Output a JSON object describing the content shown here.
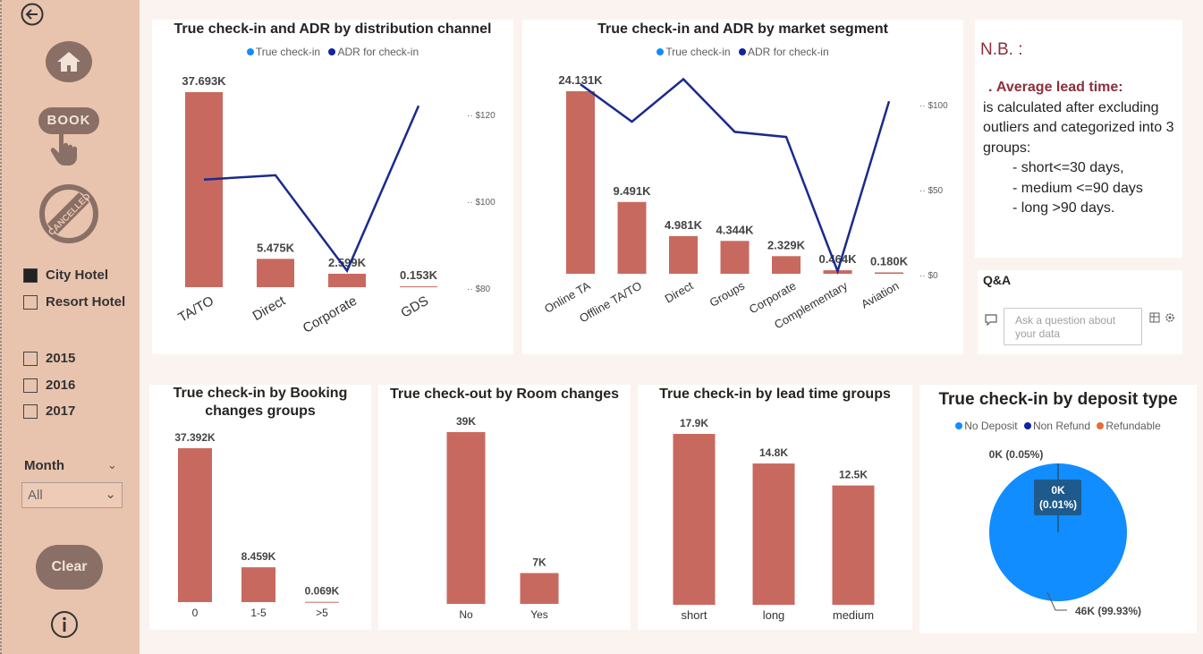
{
  "sidebar": {
    "icons": {
      "back": "back-arrow-icon",
      "home": "home-icon",
      "book": "book-icon",
      "cancelled": "cancelled-stamp-icon",
      "info": "info-icon"
    },
    "book_label": "BOOK",
    "cancelled_label": "CANCELLED",
    "hotel_options": [
      {
        "label": "City Hotel",
        "checked": true
      },
      {
        "label": "Resort Hotel",
        "checked": false
      }
    ],
    "year_options": [
      {
        "label": "2015",
        "checked": false
      },
      {
        "label": "2016",
        "checked": false
      },
      {
        "label": "2017",
        "checked": false
      }
    ],
    "month_label": "Month",
    "month_value": "All",
    "clear_label": "Clear"
  },
  "legend_labels": {
    "true_checkin": "True check-in",
    "adr": "ADR for check-in"
  },
  "colors": {
    "bar": "#c8695f",
    "line": "#1a2a8c",
    "pie_main": "#118dff",
    "pie_nonrefund": "#12239e",
    "pie_refundable": "#e66c37",
    "accent": "#8b2f3a"
  },
  "chart_data": [
    {
      "type": "bar+line",
      "title": "True check-in and ADR by distribution channel",
      "categories": [
        "TA/TO",
        "Direct",
        "Corporate",
        "GDS"
      ],
      "series": [
        {
          "name": "True check-in",
          "values": [
            37.693,
            5.475,
            2.599,
            0.153
          ],
          "labels": [
            "37.693K",
            "5.475K",
            "2.599K",
            "0.153K"
          ]
        },
        {
          "name": "ADR for check-in",
          "values": [
            105,
            106,
            84,
            122
          ]
        }
      ],
      "y2_ticks": [
        "$120",
        "$100",
        "$80"
      ],
      "y2lim": [
        80,
        120
      ]
    },
    {
      "type": "bar+line",
      "title": "True check-in and ADR by market segment",
      "categories": [
        "Online TA",
        "Offline TA/TO",
        "Direct",
        "Groups",
        "Corporate",
        "Complementary",
        "Aviation"
      ],
      "series": [
        {
          "name": "True check-in",
          "values": [
            24.131,
            9.491,
            4.981,
            4.344,
            2.329,
            0.464,
            0.18
          ],
          "labels": [
            "24.131K",
            "9.491K",
            "4.981K",
            "4.344K",
            "2.329K",
            "0.464K",
            "0.180K"
          ]
        },
        {
          "name": "ADR for check-in",
          "values": [
            112,
            90,
            115,
            84,
            81,
            2,
            102
          ]
        }
      ],
      "y2_ticks": [
        "$100",
        "$50",
        "$0"
      ],
      "y2lim": [
        0,
        100
      ]
    },
    {
      "type": "bar",
      "title": "True check-in by Booking changes groups",
      "categories": [
        "0",
        "1-5",
        ">5"
      ],
      "values": [
        37.392,
        8.459,
        0.069
      ],
      "labels": [
        "37.392K",
        "8.459K",
        "0.069K"
      ]
    },
    {
      "type": "bar",
      "title": "True check-out by Room changes",
      "categories": [
        "No",
        "Yes"
      ],
      "values": [
        39,
        7
      ],
      "labels": [
        "39K",
        "7K"
      ]
    },
    {
      "type": "bar",
      "title": "True check-in by lead time groups",
      "categories": [
        "short",
        "long",
        "medium"
      ],
      "values": [
        17.9,
        14.8,
        12.5
      ],
      "labels": [
        "17.9K",
        "14.8K",
        "12.5K"
      ]
    },
    {
      "type": "pie",
      "title": "True check-in by deposit type",
      "legend": [
        "No Deposit",
        "Non Refund",
        "Refundable"
      ],
      "values": [
        99.93,
        0.05,
        0.01
      ],
      "labels": [
        "46K (99.93%)",
        "0K (0.05%)",
        "0K (0.01%)"
      ]
    }
  ],
  "notes": {
    "title": "N.B. :",
    "bullet": ".",
    "highlight": "Average lead time:",
    "body": "is calculated after excluding outliers and categorized into 3 groups:",
    "items": [
      "- short<=30 days,",
      "- medium <=90 days",
      "- long >90 days."
    ]
  },
  "qa": {
    "title": "Q&A",
    "placeholder": "Ask a question about your data",
    "icons": [
      "chat-icon",
      "table-icon",
      "settings-icon"
    ]
  }
}
